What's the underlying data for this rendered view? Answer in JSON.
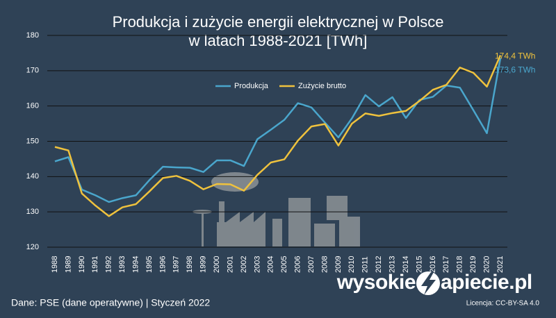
{
  "chart_data": {
    "type": "line",
    "title": "Produkcja i zużycie energii elektrycznej w Polsce",
    "subtitle": "w latach 1988-2021 [TWh]",
    "categories": [
      "1988",
      "1989",
      "1990",
      "1991",
      "1992",
      "1993",
      "1994",
      "1995",
      "1996",
      "1997",
      "1998",
      "1999",
      "2000",
      "2001",
      "2002",
      "2003",
      "2004",
      "2005",
      "2006",
      "2007",
      "2008",
      "2009",
      "2010",
      "2011",
      "2012",
      "2013",
      "2014",
      "2015",
      "2016",
      "2017",
      "2018",
      "2019",
      "2020",
      "2021"
    ],
    "series": [
      {
        "name": "Produkcja",
        "color": "#4aa6cc",
        "values": [
          144.3,
          145.5,
          136.3,
          134.7,
          132.8,
          133.9,
          134.7,
          139.0,
          142.8,
          142.6,
          142.5,
          141.3,
          144.6,
          144.6,
          143.0,
          150.6,
          153.3,
          156.1,
          160.8,
          159.6,
          155.3,
          151.1,
          156.5,
          163.1,
          159.9,
          162.5,
          156.6,
          161.7,
          162.6,
          165.8,
          165.2,
          158.8,
          152.3,
          173.6
        ],
        "value_labels": [
          null,
          null,
          null,
          null,
          null,
          null,
          null,
          null,
          null,
          null,
          null,
          null,
          null,
          null,
          null,
          null,
          null,
          null,
          null,
          null,
          null,
          null,
          null,
          null,
          null,
          null,
          null,
          null,
          null,
          null,
          null,
          null,
          null,
          "173,6 TWh"
        ]
      },
      {
        "name": "Zużycie brutto",
        "color": "#efc23d",
        "values": [
          148.4,
          147.4,
          135.2,
          131.8,
          128.8,
          131.3,
          132.2,
          135.8,
          139.6,
          140.2,
          138.8,
          136.4,
          137.9,
          137.8,
          136.0,
          140.5,
          144.0,
          144.9,
          150.2,
          154.2,
          154.9,
          148.8,
          155.0,
          157.9,
          157.2,
          158.0,
          158.6,
          161.4,
          164.6,
          166.0,
          170.9,
          169.4,
          165.5,
          174.4
        ],
        "value_labels": [
          null,
          null,
          null,
          null,
          null,
          null,
          null,
          null,
          null,
          null,
          null,
          null,
          null,
          null,
          null,
          null,
          null,
          null,
          null,
          null,
          null,
          null,
          null,
          null,
          null,
          null,
          null,
          null,
          null,
          null,
          null,
          null,
          null,
          "174,4 TWh"
        ]
      }
    ],
    "ylim": [
      120,
      180
    ],
    "yticks": [
      120,
      130,
      140,
      150,
      160,
      170,
      180
    ],
    "grid": true,
    "source": "Dane: PSE (dane operatywne)  |  Styczeń 2022",
    "logo_left": "wysokie",
    "logo_right": "apiecie.pl",
    "license": "Licencja: CC-BY-SA 4.0"
  }
}
